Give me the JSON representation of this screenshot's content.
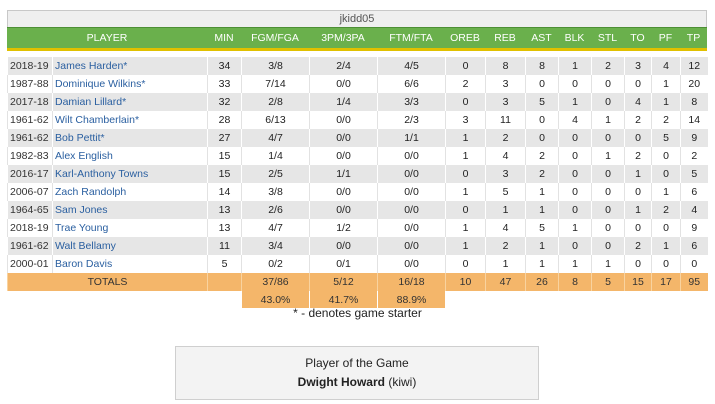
{
  "team_name": "jkidd05",
  "headers": [
    "PLAYER",
    "MIN",
    "FGM/FGA",
    "3PM/3PA",
    "FTM/FTA",
    "OREB",
    "REB",
    "AST",
    "BLK",
    "STL",
    "TO",
    "PF",
    "TP"
  ],
  "rows": [
    {
      "season": "2018-19",
      "player": "James Harden*",
      "stats": [
        "34",
        "3/8",
        "2/4",
        "4/5",
        "0",
        "8",
        "8",
        "1",
        "2",
        "3",
        "4",
        "12"
      ]
    },
    {
      "season": "1987-88",
      "player": "Dominique Wilkins*",
      "stats": [
        "33",
        "7/14",
        "0/0",
        "6/6",
        "2",
        "3",
        "0",
        "0",
        "0",
        "0",
        "1",
        "20"
      ]
    },
    {
      "season": "2017-18",
      "player": "Damian Lillard*",
      "stats": [
        "32",
        "2/8",
        "1/4",
        "3/3",
        "0",
        "3",
        "5",
        "1",
        "0",
        "4",
        "1",
        "8"
      ]
    },
    {
      "season": "1961-62",
      "player": "Wilt Chamberlain*",
      "stats": [
        "28",
        "6/13",
        "0/0",
        "2/3",
        "3",
        "11",
        "0",
        "4",
        "1",
        "2",
        "2",
        "14"
      ]
    },
    {
      "season": "1961-62",
      "player": "Bob Pettit*",
      "stats": [
        "27",
        "4/7",
        "0/0",
        "1/1",
        "1",
        "2",
        "0",
        "0",
        "0",
        "0",
        "5",
        "9"
      ]
    },
    {
      "season": "1982-83",
      "player": "Alex English",
      "stats": [
        "15",
        "1/4",
        "0/0",
        "0/0",
        "1",
        "4",
        "2",
        "0",
        "1",
        "2",
        "0",
        "2"
      ]
    },
    {
      "season": "2016-17",
      "player": "Karl-Anthony Towns",
      "stats": [
        "15",
        "2/5",
        "1/1",
        "0/0",
        "0",
        "3",
        "2",
        "0",
        "0",
        "1",
        "0",
        "5"
      ]
    },
    {
      "season": "2006-07",
      "player": "Zach Randolph",
      "stats": [
        "14",
        "3/8",
        "0/0",
        "0/0",
        "1",
        "5",
        "1",
        "0",
        "0",
        "0",
        "1",
        "6"
      ]
    },
    {
      "season": "1964-65",
      "player": "Sam Jones",
      "stats": [
        "13",
        "2/6",
        "0/0",
        "0/0",
        "0",
        "1",
        "1",
        "0",
        "0",
        "1",
        "2",
        "4"
      ]
    },
    {
      "season": "2018-19",
      "player": "Trae Young",
      "stats": [
        "13",
        "4/7",
        "1/2",
        "0/0",
        "1",
        "4",
        "5",
        "1",
        "0",
        "0",
        "0",
        "9"
      ]
    },
    {
      "season": "1961-62",
      "player": "Walt Bellamy",
      "stats": [
        "11",
        "3/4",
        "0/0",
        "0/0",
        "1",
        "2",
        "1",
        "0",
        "0",
        "2",
        "1",
        "6"
      ]
    },
    {
      "season": "2000-01",
      "player": "Baron Davis",
      "stats": [
        "5",
        "0/2",
        "0/1",
        "0/0",
        "0",
        "1",
        "1",
        "1",
        "1",
        "0",
        "0",
        "0"
      ]
    }
  ],
  "totals": {
    "label": "TOTALS",
    "stats": [
      "",
      "37/86",
      "5/12",
      "16/18",
      "10",
      "47",
      "26",
      "8",
      "5",
      "15",
      "17",
      "95"
    ]
  },
  "percentages": {
    "fg": "43.0%",
    "three": "41.7%",
    "ft": "88.9%"
  },
  "footnote": "* - denotes game starter",
  "player_of_game": {
    "title": "Player of the Game",
    "name": "Dwight Howard",
    "team": "(kiwi)"
  }
}
